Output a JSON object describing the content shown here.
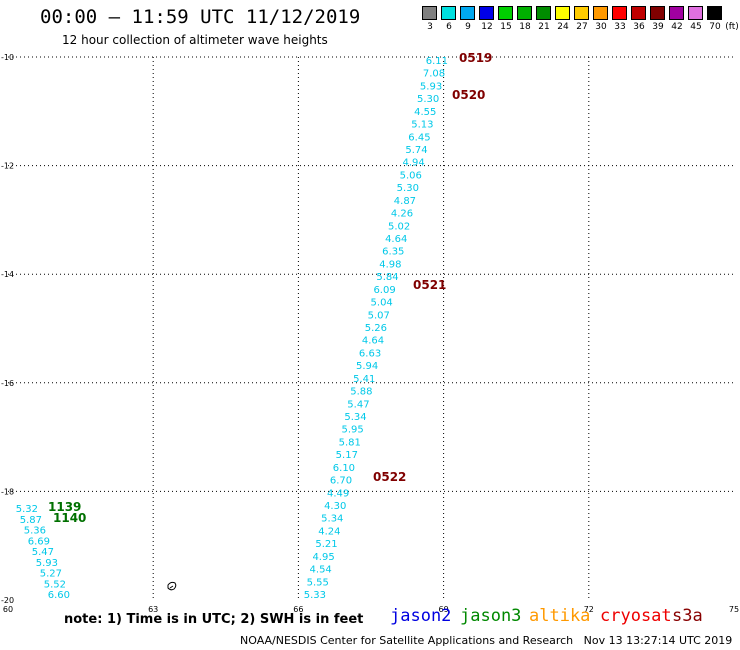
{
  "header": {
    "title": "00:00 – 11:59 UTC 11/12/2019",
    "subtitle": "12 hour collection of altimeter wave heights"
  },
  "legend": {
    "unit": "(ft)",
    "bins": [
      {
        "label": "3",
        "color": "#808080"
      },
      {
        "label": "6",
        "color": "#00e0e0"
      },
      {
        "label": "9",
        "color": "#00a8f0"
      },
      {
        "label": "12",
        "color": "#0000e8"
      },
      {
        "label": "15",
        "color": "#00d000"
      },
      {
        "label": "18",
        "color": "#00b000"
      },
      {
        "label": "21",
        "color": "#008c00"
      },
      {
        "label": "24",
        "color": "#ffff00"
      },
      {
        "label": "27",
        "color": "#ffcc00"
      },
      {
        "label": "30",
        "color": "#ff9900"
      },
      {
        "label": "33",
        "color": "#ff0000"
      },
      {
        "label": "36",
        "color": "#c00000"
      },
      {
        "label": "39",
        "color": "#800000"
      },
      {
        "label": "42",
        "color": "#a000a0"
      },
      {
        "label": "45",
        "color": "#e070e0"
      },
      {
        "label": "70",
        "color": "#000000"
      }
    ]
  },
  "axes": {
    "lon_ticks": [
      "60",
      "63",
      "66",
      "69",
      "72",
      "75"
    ],
    "lat_ticks": [
      "-10",
      "-12",
      "-14",
      "-16",
      "-18",
      "-20"
    ]
  },
  "swh_color": "#00c8e8",
  "time_color": "#800000",
  "time_color2": "#007000",
  "track_east": [
    "6.11",
    "7.08",
    "5.93",
    "5.30",
    "4.55",
    "5.13",
    "6.45",
    "5.74",
    "4.94",
    "5.06",
    "5.30",
    "4.87",
    "4.26",
    "5.02",
    "4.64",
    "6.35",
    "4.98",
    "5.84",
    "6.09",
    "5.04",
    "5.07",
    "5.26",
    "4.64",
    "6.63",
    "5.94",
    "5.41",
    "5.88",
    "5.47",
    "5.34",
    "5.95",
    "5.81",
    "5.17",
    "6.10",
    "6.70",
    "4.49",
    "4.30",
    "5.34",
    "4.24",
    "5.21",
    "4.95",
    "4.54",
    "5.55",
    "5.33"
  ],
  "track_west": [
    "5.32",
    "5.87",
    "5.36",
    "6.69",
    "5.47",
    "5.93",
    "5.27",
    "5.52",
    "6.60"
  ],
  "times_east": [
    "0519",
    "0520",
    "0521",
    "0522"
  ],
  "times_west": [
    "1139",
    "1140"
  ],
  "footer": {
    "note": "note: 1) Time is in UTC; 2) SWH is in feet",
    "sats": [
      {
        "name": "jason2",
        "color": "#0000e0"
      },
      {
        "name": "jason3",
        "color": "#008800"
      },
      {
        "name": "altika",
        "color": "#ff9900"
      },
      {
        "name": "cryosat",
        "color": "#ee0000"
      },
      {
        "name": "s3a",
        "color": "#880000"
      }
    ],
    "credit": "NOAA/NESDIS Center for Satellite Applications and Research   Nov 13 13:27:14 UTC 2019"
  }
}
